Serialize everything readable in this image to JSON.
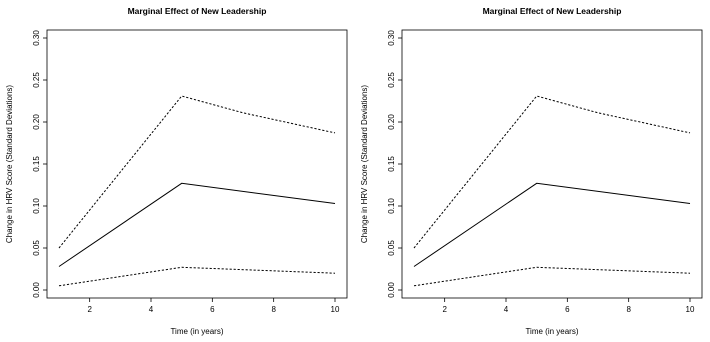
{
  "chart_data": [
    {
      "type": "line",
      "title": "Marginal Effect of New Leadership",
      "xlabel": "Time (in years)",
      "ylabel": "Change in HRV Score (Standard Deviations)",
      "xlim": [
        1,
        10
      ],
      "ylim": [
        0,
        0.3
      ],
      "x_ticks": [
        2,
        4,
        6,
        8,
        10
      ],
      "y_ticks": [
        "0.00",
        "0.05",
        "0.10",
        "0.15",
        "0.20",
        "0.25",
        "0.30"
      ],
      "legend": "none",
      "grid": false,
      "series": [
        {
          "style": "dashed",
          "x": [
            1,
            5,
            7,
            10
          ],
          "y": [
            0.05,
            0.231,
            0.211,
            0.187
          ]
        },
        {
          "style": "solid",
          "x": [
            1,
            5,
            10
          ],
          "y": [
            0.028,
            0.127,
            0.103
          ]
        },
        {
          "style": "dashed",
          "x": [
            1,
            5,
            10
          ],
          "y": [
            0.005,
            0.027,
            0.02
          ]
        }
      ]
    },
    {
      "type": "line",
      "title": "Marginal Effect of New Leadership",
      "xlabel": "Time (in years)",
      "ylabel": "Change in HRV Score (Standard Deviations)",
      "xlim": [
        1,
        10
      ],
      "ylim": [
        0,
        0.3
      ],
      "x_ticks": [
        2,
        4,
        6,
        8,
        10
      ],
      "y_ticks": [
        "0.00",
        "0.05",
        "0.10",
        "0.15",
        "0.20",
        "0.25",
        "0.30"
      ],
      "legend": "none",
      "grid": false,
      "series": [
        {
          "style": "dashed",
          "x": [
            1,
            5,
            7,
            10
          ],
          "y": [
            0.05,
            0.231,
            0.211,
            0.187
          ]
        },
        {
          "style": "solid",
          "x": [
            1,
            5,
            10
          ],
          "y": [
            0.028,
            0.127,
            0.103
          ]
        },
        {
          "style": "dashed",
          "x": [
            1,
            5,
            10
          ],
          "y": [
            0.005,
            0.027,
            0.02
          ]
        }
      ]
    }
  ]
}
